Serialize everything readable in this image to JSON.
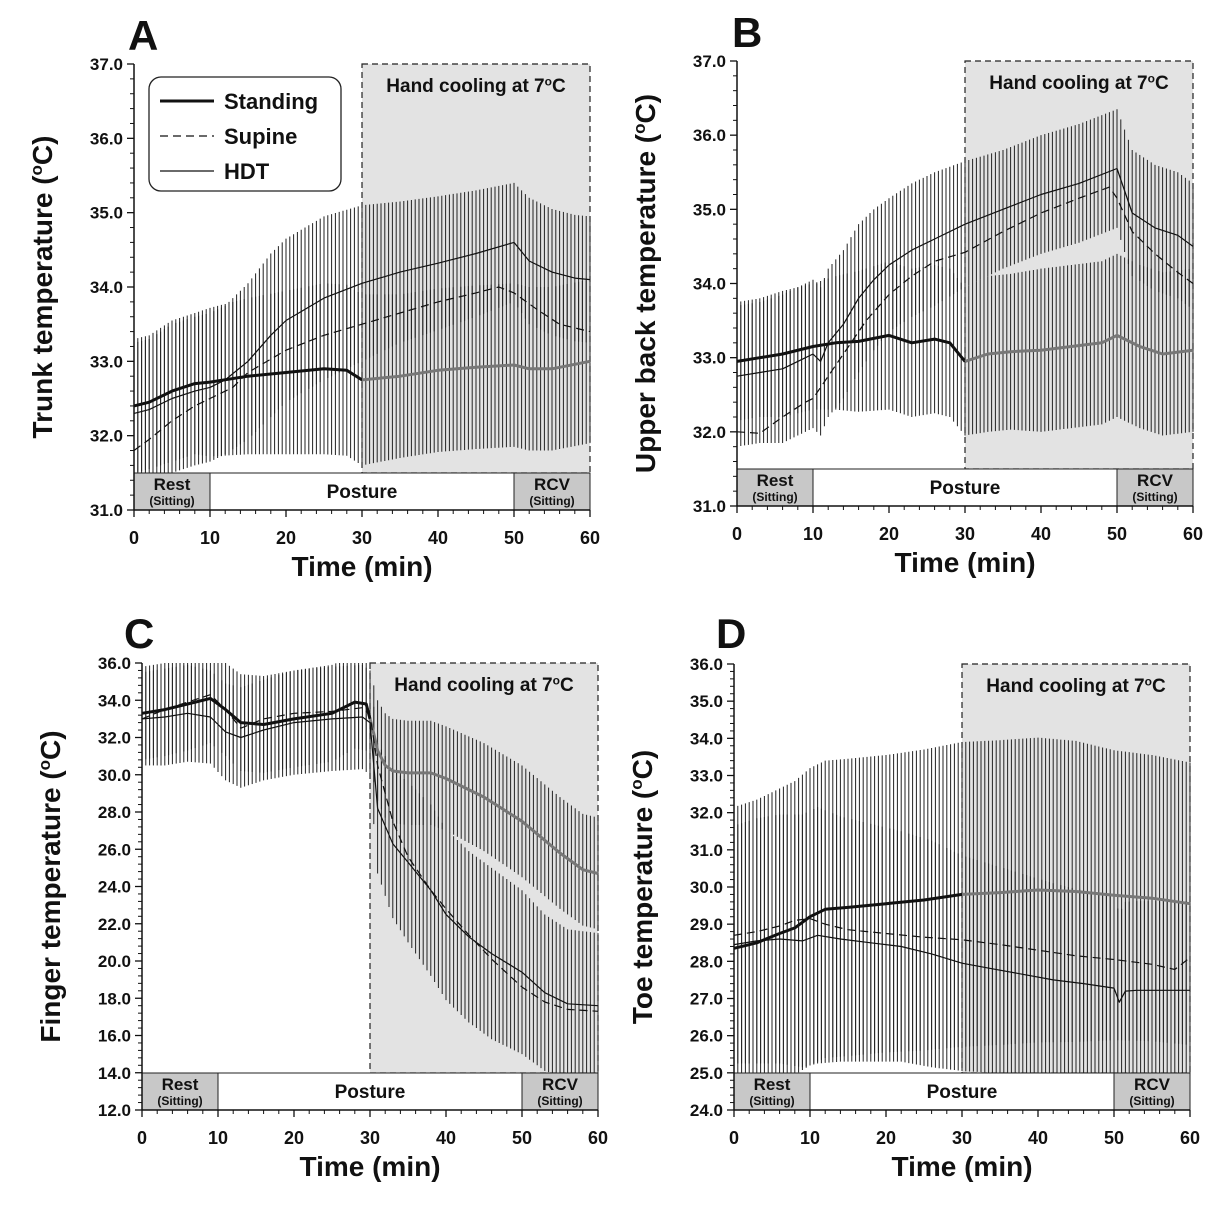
{
  "legend": {
    "entries": [
      "Standing",
      "Supine",
      "HDT"
    ]
  },
  "chart_data": [
    {
      "type": "line",
      "panel_label": "A",
      "xlabel": "Time (min)",
      "ylabel": "Trunk temperature (°C)",
      "xlim": [
        0,
        60
      ],
      "ylim": [
        31.0,
        37.0
      ],
      "x_ticks": [
        0,
        10,
        20,
        30,
        40,
        50,
        60
      ],
      "y_ticks": [
        "31.0",
        "32.0",
        "33.0",
        "34.0",
        "35.0",
        "36.0",
        "37.0"
      ],
      "shaded_region": {
        "label": "Hand cooling at 7°C",
        "x_range": [
          30,
          60
        ]
      },
      "phases": [
        {
          "label": "Rest",
          "sublabel": "(Sitting)",
          "x_range": [
            0,
            10
          ],
          "shaded": true
        },
        {
          "label": "Posture",
          "sublabel": "",
          "x_range": [
            10,
            50
          ],
          "shaded": false
        },
        {
          "label": "RCV",
          "sublabel": "(Sitting)",
          "x_range": [
            50,
            60
          ],
          "shaded": true
        }
      ],
      "series": [
        {
          "name": "Standing",
          "style": "thick",
          "x": [
            0,
            2,
            5,
            8,
            10,
            15,
            20,
            25,
            28,
            30,
            35,
            40,
            45,
            50,
            52,
            55,
            60
          ],
          "y": [
            32.4,
            32.45,
            32.6,
            32.7,
            32.72,
            32.8,
            32.85,
            32.9,
            32.88,
            32.75,
            32.8,
            32.88,
            32.92,
            32.95,
            32.9,
            32.9,
            33.0
          ],
          "err": [
            0.9,
            0.9,
            0.95,
            0.95,
            1.0,
            1.05,
            1.1,
            1.15,
            1.15,
            1.15,
            1.1,
            1.1,
            1.1,
            1.1,
            1.1,
            1.1,
            1.1
          ]
        },
        {
          "name": "Supine",
          "style": "dashed",
          "x": [
            0,
            2,
            5,
            8,
            10,
            13,
            15,
            20,
            25,
            30,
            35,
            40,
            45,
            48,
            50,
            53,
            56,
            60
          ],
          "y": [
            31.8,
            31.95,
            32.2,
            32.4,
            32.5,
            32.65,
            32.85,
            33.15,
            33.35,
            33.5,
            33.65,
            33.8,
            33.92,
            34.0,
            33.92,
            33.7,
            33.5,
            33.4
          ],
          "err": []
        },
        {
          "name": "HDT",
          "style": "thin",
          "x": [
            0,
            2,
            5,
            8,
            10,
            12,
            15,
            18,
            20,
            25,
            30,
            35,
            40,
            45,
            50,
            52,
            55,
            58,
            60
          ],
          "y": [
            32.3,
            32.35,
            32.5,
            32.6,
            32.65,
            32.75,
            33.0,
            33.35,
            33.55,
            33.85,
            34.05,
            34.2,
            34.32,
            34.45,
            34.6,
            34.35,
            34.2,
            34.12,
            34.1
          ],
          "err": [
            0.95,
            0.95,
            1.0,
            1.0,
            1.0,
            1.0,
            1.05,
            1.1,
            1.1,
            1.1,
            1.05,
            0.95,
            0.9,
            0.85,
            0.8,
            0.85,
            0.85,
            0.85,
            0.85
          ]
        }
      ]
    },
    {
      "type": "line",
      "panel_label": "B",
      "xlabel": "Time (min)",
      "ylabel": "Upper back temperature (°C)",
      "xlim": [
        0,
        60
      ],
      "ylim": [
        31.0,
        37.0
      ],
      "x_ticks": [
        0,
        10,
        20,
        30,
        40,
        50,
        60
      ],
      "y_ticks": [
        "31.0",
        "32.0",
        "33.0",
        "34.0",
        "35.0",
        "36.0",
        "37.0"
      ],
      "shaded_region": {
        "label": "Hand cooling at 7°C",
        "x_range": [
          30,
          60
        ]
      },
      "phases": [
        {
          "label": "Rest",
          "sublabel": "(Sitting)",
          "x_range": [
            0,
            10
          ],
          "shaded": true
        },
        {
          "label": "Posture",
          "sublabel": "",
          "x_range": [
            10,
            50
          ],
          "shaded": false
        },
        {
          "label": "RCV",
          "sublabel": "(Sitting)",
          "x_range": [
            50,
            60
          ],
          "shaded": true
        }
      ],
      "series": [
        {
          "name": "Standing",
          "style": "thick",
          "x": [
            0,
            3,
            6,
            10,
            13,
            16,
            20,
            23,
            26,
            28,
            30,
            33,
            36,
            40,
            44,
            48,
            50,
            53,
            56,
            60
          ],
          "y": [
            32.95,
            33.0,
            33.05,
            33.15,
            33.2,
            33.22,
            33.3,
            33.2,
            33.25,
            33.2,
            32.95,
            33.05,
            33.08,
            33.1,
            33.15,
            33.2,
            33.3,
            33.15,
            33.05,
            33.1
          ],
          "err": [
            0.8,
            0.8,
            0.85,
            0.85,
            0.9,
            0.95,
            1.0,
            1.0,
            1.0,
            1.0,
            1.0,
            1.05,
            1.05,
            1.1,
            1.1,
            1.1,
            1.1,
            1.1,
            1.1,
            1.1
          ]
        },
        {
          "name": "Supine",
          "style": "dashed",
          "x": [
            0,
            3,
            6,
            9,
            10,
            12,
            14,
            17,
            20,
            23,
            26,
            30,
            35,
            40,
            45,
            49,
            50,
            52,
            55,
            58,
            60
          ],
          "y": [
            32.0,
            31.98,
            32.2,
            32.4,
            32.45,
            32.75,
            33.05,
            33.5,
            33.85,
            34.1,
            34.3,
            34.42,
            34.7,
            34.95,
            35.15,
            35.3,
            35.15,
            34.7,
            34.4,
            34.15,
            34.0
          ],
          "err": []
        },
        {
          "name": "HDT",
          "style": "thin",
          "x": [
            0,
            3,
            6,
            8,
            10,
            11,
            12,
            14,
            16,
            18,
            20,
            23,
            26,
            30,
            35,
            40,
            45,
            50,
            52,
            55,
            58,
            60
          ],
          "y": [
            32.75,
            32.8,
            32.85,
            32.95,
            33.05,
            32.95,
            33.2,
            33.45,
            33.8,
            34.05,
            34.25,
            34.45,
            34.6,
            34.8,
            35.0,
            35.2,
            35.35,
            35.55,
            34.95,
            34.75,
            34.65,
            34.5
          ],
          "err": [
            0.95,
            0.95,
            1.0,
            1.0,
            1.0,
            1.0,
            1.0,
            1.0,
            1.0,
            0.95,
            0.9,
            0.9,
            0.9,
            0.85,
            0.8,
            0.8,
            0.8,
            0.8,
            0.85,
            0.85,
            0.85,
            0.85
          ]
        }
      ]
    },
    {
      "type": "line",
      "panel_label": "C",
      "xlabel": "Time (min)",
      "ylabel": "Finger temperature (°C)",
      "xlim": [
        0,
        60
      ],
      "ylim": [
        12.0,
        36.0
      ],
      "x_ticks": [
        0,
        10,
        20,
        30,
        40,
        50,
        60
      ],
      "y_ticks": [
        "12.0",
        "14.0",
        "16.0",
        "18.0",
        "20.0",
        "22.0",
        "24.0",
        "26.0",
        "28.0",
        "30.0",
        "32.0",
        "34.0",
        "36.0"
      ],
      "shaded_region": {
        "label": "Hand cooling at 7°C",
        "x_range": [
          30,
          60
        ]
      },
      "phases": [
        {
          "label": "Rest",
          "sublabel": "(Sitting)",
          "x_range": [
            0,
            10
          ],
          "shaded": true
        },
        {
          "label": "Posture",
          "sublabel": "",
          "x_range": [
            10,
            50
          ],
          "shaded": false
        },
        {
          "label": "RCV",
          "sublabel": "(Sitting)",
          "x_range": [
            50,
            60
          ],
          "shaded": true
        }
      ],
      "series": [
        {
          "name": "Standing",
          "style": "thick",
          "x": [
            0,
            3,
            6,
            9,
            11,
            13,
            16,
            20,
            25,
            28,
            29.5,
            30,
            30.5,
            31,
            32,
            33,
            35,
            38,
            40,
            45,
            50,
            55,
            58,
            60
          ],
          "y": [
            33.3,
            33.5,
            33.8,
            34.1,
            33.5,
            32.8,
            32.7,
            33.0,
            33.3,
            33.9,
            33.8,
            33.0,
            32.2,
            31.3,
            30.5,
            30.2,
            30.1,
            30.1,
            29.8,
            28.8,
            27.5,
            25.8,
            24.9,
            24.7
          ],
          "err": [
            2.5,
            2.5,
            2.5,
            2.4,
            2.5,
            2.6,
            2.6,
            2.6,
            2.6,
            2.5,
            2.5,
            2.5,
            2.6,
            2.7,
            2.8,
            2.8,
            2.8,
            2.8,
            2.8,
            2.9,
            3.0,
            3.0,
            3.0,
            3.0
          ]
        },
        {
          "name": "Supine",
          "style": "dashed",
          "x": [
            0,
            3,
            6,
            9,
            11,
            13,
            16,
            20,
            25,
            29,
            30,
            31,
            33,
            35,
            38,
            40,
            43,
            46,
            50,
            53,
            56,
            60
          ],
          "y": [
            33.0,
            33.5,
            33.9,
            34.3,
            33.5,
            32.5,
            33.0,
            33.3,
            33.4,
            33.6,
            33.2,
            30.5,
            27.5,
            25.6,
            23.8,
            22.8,
            21.4,
            20.1,
            18.6,
            17.8,
            17.4,
            17.3
          ],
          "err": []
        },
        {
          "name": "HDT",
          "style": "thin",
          "x": [
            0,
            3,
            6,
            9,
            11,
            13,
            16,
            20,
            25,
            29,
            30,
            31,
            33,
            35,
            38,
            40,
            43,
            46,
            50,
            53,
            56,
            60
          ],
          "y": [
            33.0,
            33.1,
            33.3,
            33.1,
            32.3,
            32.0,
            32.4,
            32.8,
            33.0,
            33.1,
            32.8,
            28.2,
            26.3,
            25.3,
            23.8,
            22.5,
            21.3,
            20.4,
            19.4,
            18.3,
            17.7,
            17.6
          ],
          "err": [
            2.5,
            2.6,
            2.6,
            2.5,
            2.6,
            2.7,
            2.7,
            2.8,
            2.8,
            2.8,
            2.8,
            3.5,
            4.0,
            4.3,
            4.6,
            4.6,
            4.6,
            4.6,
            4.4,
            4.2,
            4.0,
            3.9
          ]
        }
      ]
    },
    {
      "type": "line",
      "panel_label": "D",
      "xlabel": "Time (min)",
      "ylabel": "Toe temperature (°C)",
      "xlim": [
        0,
        60
      ],
      "ylim": [
        24.0,
        36.0
      ],
      "x_ticks": [
        0,
        10,
        20,
        30,
        40,
        50,
        60
      ],
      "y_ticks": [
        "24.0",
        "25.0",
        "26.0",
        "27.0",
        "28.0",
        "29.0",
        "30.0",
        "31.0",
        "32.0",
        "33.0",
        "34.0",
        "35.0",
        "36.0"
      ],
      "shaded_region": {
        "label": "Hand cooling at 7°C",
        "x_range": [
          30,
          60
        ]
      },
      "phases": [
        {
          "label": "Rest",
          "sublabel": "(Sitting)",
          "x_range": [
            0,
            10
          ],
          "shaded": true
        },
        {
          "label": "Posture",
          "sublabel": "",
          "x_range": [
            10,
            50
          ],
          "shaded": false
        },
        {
          "label": "RCV",
          "sublabel": "(Sitting)",
          "x_range": [
            50,
            60
          ],
          "shaded": true
        }
      ],
      "series": [
        {
          "name": "Standing",
          "style": "thick",
          "x": [
            0,
            3,
            6,
            8,
            10,
            12,
            15,
            20,
            25,
            30,
            35,
            40,
            45,
            50,
            55,
            60
          ],
          "y": [
            28.35,
            28.5,
            28.75,
            28.9,
            29.2,
            29.4,
            29.45,
            29.55,
            29.65,
            29.8,
            29.85,
            29.92,
            29.88,
            29.78,
            29.7,
            29.55
          ],
          "err": [
            3.8,
            3.85,
            3.9,
            3.95,
            4.0,
            4.0,
            4.0,
            4.0,
            4.05,
            4.1,
            4.1,
            4.1,
            4.05,
            3.9,
            3.85,
            3.8
          ]
        },
        {
          "name": "Supine",
          "style": "dashed",
          "x": [
            0,
            3,
            6,
            8,
            10,
            12,
            15,
            20,
            25,
            30,
            35,
            40,
            45,
            50,
            55,
            58,
            60
          ],
          "y": [
            28.7,
            28.8,
            28.95,
            29.1,
            29.15,
            29.0,
            28.85,
            28.75,
            28.65,
            28.58,
            28.45,
            28.3,
            28.15,
            28.05,
            27.92,
            27.78,
            28.1
          ],
          "err": []
        },
        {
          "name": "HDT",
          "style": "thin",
          "x": [
            0,
            3,
            6,
            9,
            11,
            14,
            18,
            22,
            26,
            30,
            34,
            38,
            42,
            46,
            50,
            50.7,
            51.5,
            53,
            56,
            60
          ],
          "y": [
            28.45,
            28.55,
            28.6,
            28.55,
            28.7,
            28.6,
            28.5,
            28.4,
            28.2,
            27.95,
            27.8,
            27.65,
            27.5,
            27.4,
            27.28,
            26.9,
            27.2,
            27.22,
            27.22,
            27.22
          ],
          "err": [
            3.2,
            3.3,
            3.35,
            3.4,
            3.45,
            3.3,
            3.2,
            3.1,
            3.05,
            2.9,
            2.8,
            2.7,
            2.6,
            2.5,
            2.45,
            2.4,
            2.4,
            2.4,
            2.4,
            2.4
          ]
        }
      ]
    }
  ]
}
